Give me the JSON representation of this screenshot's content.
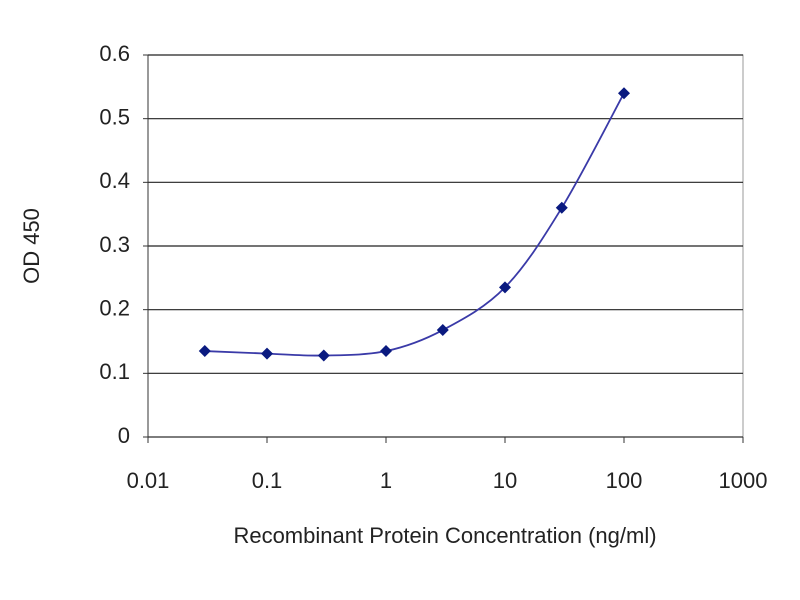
{
  "chart_data": {
    "type": "line",
    "x_label": "Recombinant Protein Concentration (ng/ml)",
    "y_label": "OD 450",
    "x": [
      0.03,
      0.1,
      0.3,
      1,
      3,
      10,
      30,
      100
    ],
    "values": [
      0.135,
      0.131,
      0.128,
      0.135,
      0.168,
      0.235,
      0.36,
      0.54
    ],
    "color": "#3a3aa8",
    "marker_color": "#0a1a80",
    "x_scale": "log",
    "xlim": [
      0.01,
      1000
    ],
    "xticks": [
      0.01,
      0.1,
      1,
      10,
      100,
      1000
    ],
    "ylim": [
      0,
      0.6
    ],
    "yticks": [
      0,
      0.1,
      0.2,
      0.3,
      0.4,
      0.5,
      0.6
    ],
    "grid": true
  }
}
